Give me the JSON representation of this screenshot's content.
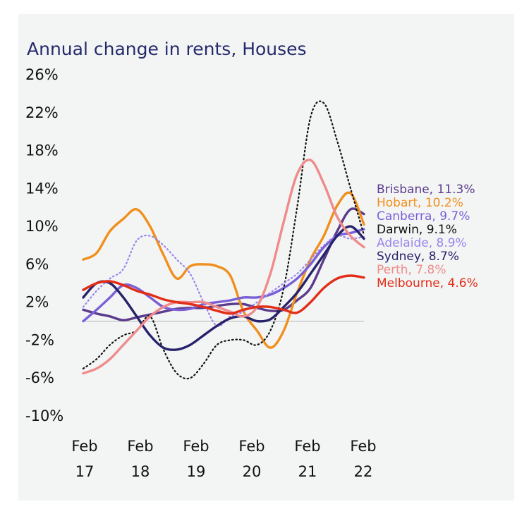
{
  "chart_data": {
    "type": "line",
    "title": "Annual change in rents, Houses",
    "xlabel": "",
    "ylabel": "",
    "ylim": [
      -10,
      26
    ],
    "y_ticks": [
      26,
      22,
      18,
      14,
      10,
      6,
      2,
      -2,
      -6,
      -10
    ],
    "y_tick_labels": [
      "26%",
      "22%",
      "18%",
      "14%",
      "10%",
      "6%",
      "2%",
      "-2%",
      "-6%",
      "-10%"
    ],
    "x_ticks": [
      {
        "top": "Feb",
        "bottom": "17"
      },
      {
        "top": "Feb",
        "bottom": "18"
      },
      {
        "top": "Feb",
        "bottom": "19"
      },
      {
        "top": "Feb",
        "bottom": "20"
      },
      {
        "top": "Feb",
        "bottom": "21"
      },
      {
        "top": "Feb",
        "bottom": "22"
      }
    ],
    "x": [
      "Jan 17",
      "Apr 17",
      "Jul 17",
      "Oct 17",
      "Jan 18",
      "Apr 18",
      "Jul 18",
      "Oct 18",
      "Jan 19",
      "Apr 19",
      "Jul 19",
      "Oct 19",
      "Jan 20",
      "Apr 20",
      "Jul 20",
      "Oct 20",
      "Jan 21",
      "Apr 21",
      "Jul 21",
      "Oct 21",
      "Jan 22",
      "Feb 22"
    ],
    "zero_line": true,
    "grid": false,
    "series": [
      {
        "name": "Brisbane",
        "label": "Brisbane, 11.3%",
        "color": "#5b3b8c",
        "dash": "solid",
        "values": [
          1.2,
          0.8,
          0.5,
          0.1,
          0.4,
          0.7,
          1.0,
          1.3,
          1.4,
          1.4,
          1.6,
          1.8,
          1.8,
          1.4,
          1.1,
          1.2,
          2.2,
          3.5,
          6.5,
          9.5,
          11.8,
          11.3
        ]
      },
      {
        "name": "Hobart",
        "label": "Hobart, 10.2%",
        "color": "#f18f1c",
        "dash": "solid",
        "values": [
          6.5,
          7.2,
          9.5,
          10.8,
          11.8,
          10.0,
          7.0,
          4.5,
          5.8,
          6.0,
          5.8,
          4.8,
          1.0,
          -1.0,
          -2.8,
          -1.0,
          3.0,
          6.5,
          9.0,
          12.2,
          13.5,
          10.2
        ]
      },
      {
        "name": "Canberra",
        "label": "Canberra, 9.7%",
        "color": "#7a5fd6",
        "dash": "solid",
        "values": [
          0.0,
          1.2,
          2.5,
          3.8,
          3.5,
          2.5,
          1.5,
          1.2,
          1.3,
          1.8,
          2.0,
          2.2,
          2.5,
          2.5,
          2.8,
          3.5,
          4.5,
          6.0,
          7.8,
          9.0,
          9.3,
          9.7
        ]
      },
      {
        "name": "Darwin",
        "label": "Darwin, 9.1%",
        "color": "#111111",
        "dash": "dotted",
        "values": [
          -5.0,
          -4.0,
          -2.5,
          -1.5,
          -1.0,
          0.5,
          -3.0,
          -5.5,
          -6.0,
          -4.5,
          -2.5,
          -2.0,
          -2.0,
          -2.5,
          -1.0,
          3.5,
          12.0,
          21.5,
          23.0,
          19.0,
          14.0,
          9.1
        ]
      },
      {
        "name": "Adelaide",
        "label": "Adelaide, 8.9%",
        "color": "#9a84ea",
        "dash": "dotted",
        "values": [
          1.5,
          3.2,
          4.5,
          5.5,
          8.5,
          9.0,
          8.0,
          6.5,
          5.0,
          2.0,
          -0.5,
          0.5,
          1.0,
          2.0,
          3.0,
          4.0,
          5.0,
          6.5,
          8.0,
          9.0,
          8.7,
          8.9
        ]
      },
      {
        "name": "Sydney",
        "label": "Sydney, 8.7%",
        "color": "#26226b",
        "dash": "solid",
        "values": [
          2.5,
          4.0,
          4.0,
          2.5,
          0.5,
          -1.5,
          -2.8,
          -3.0,
          -2.5,
          -1.5,
          -0.5,
          0.3,
          0.5,
          0.0,
          0.2,
          1.5,
          3.0,
          5.0,
          7.0,
          9.0,
          10.0,
          8.7
        ]
      },
      {
        "name": "Perth",
        "label": "Perth, 7.8%",
        "color": "#ef8b8b",
        "dash": "solid",
        "values": [
          -5.5,
          -5.0,
          -4.0,
          -2.5,
          -1.0,
          0.5,
          1.5,
          2.0,
          2.0,
          2.0,
          1.5,
          1.0,
          0.5,
          1.5,
          5.0,
          10.5,
          15.5,
          17.0,
          14.5,
          11.0,
          9.0,
          7.8
        ]
      },
      {
        "name": "Melbourne",
        "label": "Melbourne, 4.6%",
        "color": "#e22d17",
        "dash": "solid",
        "values": [
          3.3,
          4.0,
          4.2,
          3.8,
          3.2,
          2.8,
          2.3,
          2.0,
          1.8,
          1.5,
          1.1,
          0.8,
          1.2,
          1.5,
          1.5,
          1.2,
          0.9,
          2.0,
          3.5,
          4.5,
          4.8,
          4.6
        ]
      }
    ]
  }
}
